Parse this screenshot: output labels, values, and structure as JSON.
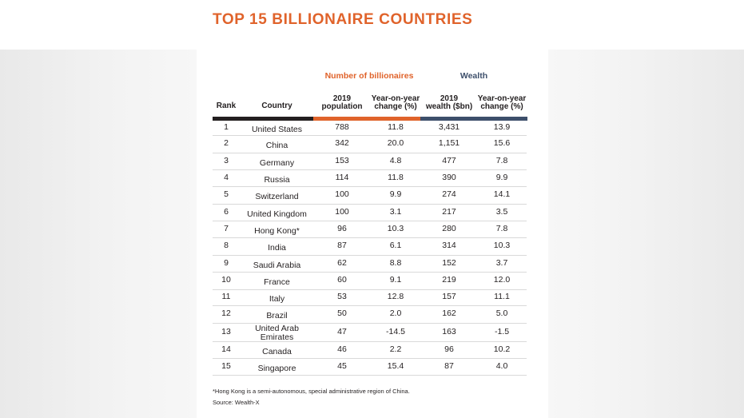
{
  "title": "TOP 15 BILLIONAIRE COUNTRIES",
  "group_headers": {
    "billionaires": "Number of billionaires",
    "wealth": "Wealth"
  },
  "columns": {
    "rank": "Rank",
    "country": "Country",
    "population": [
      "2019",
      "population"
    ],
    "pop_change": [
      "Year-on-year",
      "change (%)"
    ],
    "wealth": [
      "2019",
      "wealth ($bn)"
    ],
    "wealth_change": [
      "Year-on-year",
      "change (%)"
    ]
  },
  "colors": {
    "accent_orange": "#e0632b",
    "accent_navy": "#3d4f6b",
    "bar_dark": "#231f20"
  },
  "rows": [
    {
      "rank": "1",
      "country": "United States",
      "population": "788",
      "pop_change": "11.8",
      "wealth": "3,431",
      "wealth_change": "13.9"
    },
    {
      "rank": "2",
      "country": "China",
      "population": "342",
      "pop_change": "20.0",
      "wealth": "1,151",
      "wealth_change": "15.6"
    },
    {
      "rank": "3",
      "country": "Germany",
      "population": "153",
      "pop_change": "4.8",
      "wealth": "477",
      "wealth_change": "7.8"
    },
    {
      "rank": "4",
      "country": "Russia",
      "population": "114",
      "pop_change": "11.8",
      "wealth": "390",
      "wealth_change": "9.9"
    },
    {
      "rank": "5",
      "country": "Switzerland",
      "population": "100",
      "pop_change": "9.9",
      "wealth": "274",
      "wealth_change": "14.1"
    },
    {
      "rank": "6",
      "country": "United Kingdom",
      "population": "100",
      "pop_change": "3.1",
      "wealth": "217",
      "wealth_change": "3.5"
    },
    {
      "rank": "7",
      "country": "Hong Kong*",
      "population": "96",
      "pop_change": "10.3",
      "wealth": "280",
      "wealth_change": "7.8"
    },
    {
      "rank": "8",
      "country": "India",
      "population": "87",
      "pop_change": "6.1",
      "wealth": "314",
      "wealth_change": "10.3"
    },
    {
      "rank": "9",
      "country": "Saudi Arabia",
      "population": "62",
      "pop_change": "8.8",
      "wealth": "152",
      "wealth_change": "3.7"
    },
    {
      "rank": "10",
      "country": "France",
      "population": "60",
      "pop_change": "9.1",
      "wealth": "219",
      "wealth_change": "12.0"
    },
    {
      "rank": "11",
      "country": "Italy",
      "population": "53",
      "pop_change": "12.8",
      "wealth": "157",
      "wealth_change": "11.1"
    },
    {
      "rank": "12",
      "country": "Brazil",
      "population": "50",
      "pop_change": "2.0",
      "wealth": "162",
      "wealth_change": "5.0"
    },
    {
      "rank": "13",
      "country": "United Arab Emirates",
      "population": "47",
      "pop_change": "-14.5",
      "wealth": "163",
      "wealth_change": "-1.5"
    },
    {
      "rank": "14",
      "country": "Canada",
      "population": "46",
      "pop_change": "2.2",
      "wealth": "96",
      "wealth_change": "10.2"
    },
    {
      "rank": "15",
      "country": "Singapore",
      "population": "45",
      "pop_change": "15.4",
      "wealth": "87",
      "wealth_change": "4.0"
    }
  ],
  "footnote": "*Hong Kong is a semi-autonomous, special administrative region of China.",
  "source": "Source: Wealth-X"
}
